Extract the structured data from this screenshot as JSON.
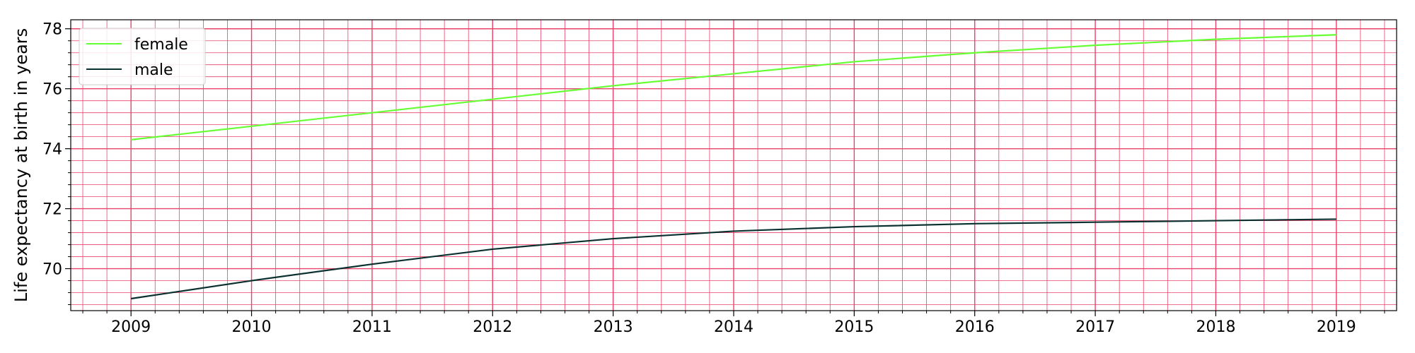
{
  "chart_data": {
    "type": "line",
    "title": "",
    "xlabel": "",
    "ylabel": "Life expectancy at birth in years",
    "x": [
      2009,
      2010,
      2011,
      2012,
      2013,
      2014,
      2015,
      2016,
      2017,
      2018,
      2019
    ],
    "xlim": [
      2008.5,
      2019.5
    ],
    "ylim": [
      68.6,
      78.3
    ],
    "xticks": [
      "2009",
      "2010",
      "2011",
      "2012",
      "2013",
      "2014",
      "2015",
      "2016",
      "2017",
      "2018",
      "2019"
    ],
    "yticks": [
      "70",
      "72",
      "74",
      "76",
      "78"
    ],
    "grid": true,
    "grid_color": "#e8436a",
    "legend_position": "top-left",
    "series": [
      {
        "name": "female",
        "color": "#66ff33",
        "values": [
          74.3,
          74.75,
          75.2,
          75.65,
          76.1,
          76.5,
          76.9,
          77.2,
          77.45,
          77.65,
          77.8
        ]
      },
      {
        "name": "male",
        "color": "#0b3030",
        "values": [
          69.0,
          69.6,
          70.15,
          70.65,
          71.0,
          71.25,
          71.4,
          71.5,
          71.55,
          71.6,
          71.65
        ]
      }
    ]
  }
}
